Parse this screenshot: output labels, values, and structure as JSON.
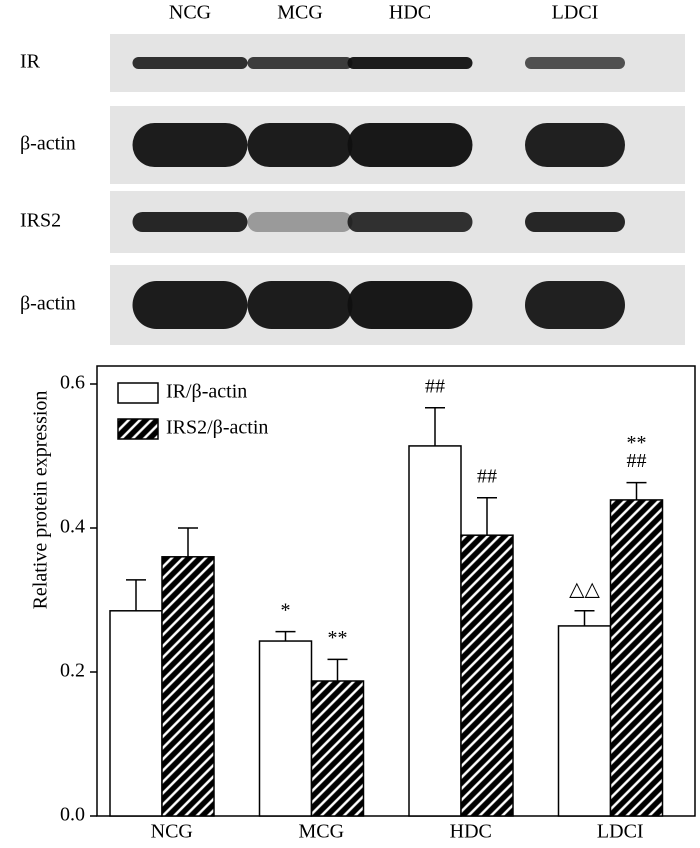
{
  "blot": {
    "lanes": [
      "NCG",
      "MCG",
      "HDC",
      "LDCI"
    ],
    "rows": [
      "IR",
      "β-actin",
      "IRS2",
      "β-actin"
    ]
  },
  "chart_data": {
    "type": "bar",
    "ylabel": "Relative protein expression",
    "categories": [
      "NCG",
      "MCG",
      "HDC",
      "LDCI"
    ],
    "series": [
      {
        "name": "IR/β-actin",
        "color": "#ffffff",
        "pattern": "none",
        "values": [
          0.285,
          0.243,
          0.514,
          0.264
        ],
        "errors": [
          0.043,
          0.013,
          0.053,
          0.021
        ],
        "annotations": [
          null,
          "*",
          "##",
          "△△"
        ]
      },
      {
        "name": "IRS2/β-actin",
        "color": "#000000",
        "pattern": "hatch",
        "values": [
          0.36,
          0.1875,
          0.39,
          0.439
        ],
        "errors": [
          0.04,
          0.03,
          0.052,
          0.024
        ],
        "annotations": [
          null,
          "**",
          "##",
          [
            "**",
            "##"
          ]
        ]
      }
    ],
    "ylim": [
      0,
      0.625
    ],
    "yticks": [
      {
        "value": 0,
        "label": "0.0"
      },
      0.2,
      0.4,
      0.6
    ],
    "legend": "top-left",
    "grid": false
  }
}
